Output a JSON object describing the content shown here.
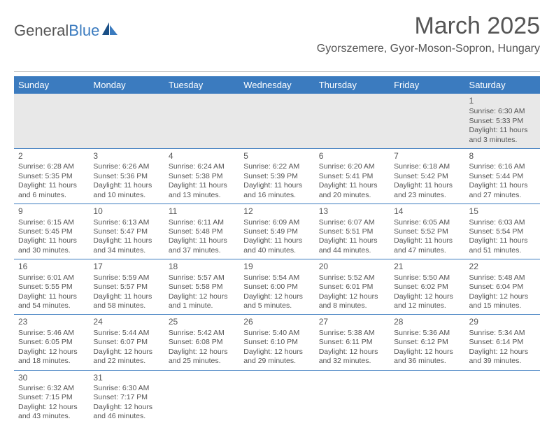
{
  "logo": {
    "text_a": "General",
    "text_b": "Blue",
    "mark_color": "#1a4f86",
    "accent_color": "#3b7bbf"
  },
  "header": {
    "title": "March 2025",
    "location": "Gyorszemere, Gyor-Moson-Sopron, Hungary"
  },
  "colors": {
    "header_bg": "#3b7bbf",
    "header_fg": "#ffffff",
    "row_border": "#3b7bbf",
    "empty_bg": "#e8e8e8",
    "text": "#555555"
  },
  "weekdays": [
    "Sunday",
    "Monday",
    "Tuesday",
    "Wednesday",
    "Thursday",
    "Friday",
    "Saturday"
  ],
  "weeks": [
    [
      null,
      null,
      null,
      null,
      null,
      null,
      {
        "n": "1",
        "sunrise": "Sunrise: 6:30 AM",
        "sunset": "Sunset: 5:33 PM",
        "daylight": "Daylight: 11 hours and 3 minutes."
      }
    ],
    [
      {
        "n": "2",
        "sunrise": "Sunrise: 6:28 AM",
        "sunset": "Sunset: 5:35 PM",
        "daylight": "Daylight: 11 hours and 6 minutes."
      },
      {
        "n": "3",
        "sunrise": "Sunrise: 6:26 AM",
        "sunset": "Sunset: 5:36 PM",
        "daylight": "Daylight: 11 hours and 10 minutes."
      },
      {
        "n": "4",
        "sunrise": "Sunrise: 6:24 AM",
        "sunset": "Sunset: 5:38 PM",
        "daylight": "Daylight: 11 hours and 13 minutes."
      },
      {
        "n": "5",
        "sunrise": "Sunrise: 6:22 AM",
        "sunset": "Sunset: 5:39 PM",
        "daylight": "Daylight: 11 hours and 16 minutes."
      },
      {
        "n": "6",
        "sunrise": "Sunrise: 6:20 AM",
        "sunset": "Sunset: 5:41 PM",
        "daylight": "Daylight: 11 hours and 20 minutes."
      },
      {
        "n": "7",
        "sunrise": "Sunrise: 6:18 AM",
        "sunset": "Sunset: 5:42 PM",
        "daylight": "Daylight: 11 hours and 23 minutes."
      },
      {
        "n": "8",
        "sunrise": "Sunrise: 6:16 AM",
        "sunset": "Sunset: 5:44 PM",
        "daylight": "Daylight: 11 hours and 27 minutes."
      }
    ],
    [
      {
        "n": "9",
        "sunrise": "Sunrise: 6:15 AM",
        "sunset": "Sunset: 5:45 PM",
        "daylight": "Daylight: 11 hours and 30 minutes."
      },
      {
        "n": "10",
        "sunrise": "Sunrise: 6:13 AM",
        "sunset": "Sunset: 5:47 PM",
        "daylight": "Daylight: 11 hours and 34 minutes."
      },
      {
        "n": "11",
        "sunrise": "Sunrise: 6:11 AM",
        "sunset": "Sunset: 5:48 PM",
        "daylight": "Daylight: 11 hours and 37 minutes."
      },
      {
        "n": "12",
        "sunrise": "Sunrise: 6:09 AM",
        "sunset": "Sunset: 5:49 PM",
        "daylight": "Daylight: 11 hours and 40 minutes."
      },
      {
        "n": "13",
        "sunrise": "Sunrise: 6:07 AM",
        "sunset": "Sunset: 5:51 PM",
        "daylight": "Daylight: 11 hours and 44 minutes."
      },
      {
        "n": "14",
        "sunrise": "Sunrise: 6:05 AM",
        "sunset": "Sunset: 5:52 PM",
        "daylight": "Daylight: 11 hours and 47 minutes."
      },
      {
        "n": "15",
        "sunrise": "Sunrise: 6:03 AM",
        "sunset": "Sunset: 5:54 PM",
        "daylight": "Daylight: 11 hours and 51 minutes."
      }
    ],
    [
      {
        "n": "16",
        "sunrise": "Sunrise: 6:01 AM",
        "sunset": "Sunset: 5:55 PM",
        "daylight": "Daylight: 11 hours and 54 minutes."
      },
      {
        "n": "17",
        "sunrise": "Sunrise: 5:59 AM",
        "sunset": "Sunset: 5:57 PM",
        "daylight": "Daylight: 11 hours and 58 minutes."
      },
      {
        "n": "18",
        "sunrise": "Sunrise: 5:57 AM",
        "sunset": "Sunset: 5:58 PM",
        "daylight": "Daylight: 12 hours and 1 minute."
      },
      {
        "n": "19",
        "sunrise": "Sunrise: 5:54 AM",
        "sunset": "Sunset: 6:00 PM",
        "daylight": "Daylight: 12 hours and 5 minutes."
      },
      {
        "n": "20",
        "sunrise": "Sunrise: 5:52 AM",
        "sunset": "Sunset: 6:01 PM",
        "daylight": "Daylight: 12 hours and 8 minutes."
      },
      {
        "n": "21",
        "sunrise": "Sunrise: 5:50 AM",
        "sunset": "Sunset: 6:02 PM",
        "daylight": "Daylight: 12 hours and 12 minutes."
      },
      {
        "n": "22",
        "sunrise": "Sunrise: 5:48 AM",
        "sunset": "Sunset: 6:04 PM",
        "daylight": "Daylight: 12 hours and 15 minutes."
      }
    ],
    [
      {
        "n": "23",
        "sunrise": "Sunrise: 5:46 AM",
        "sunset": "Sunset: 6:05 PM",
        "daylight": "Daylight: 12 hours and 18 minutes."
      },
      {
        "n": "24",
        "sunrise": "Sunrise: 5:44 AM",
        "sunset": "Sunset: 6:07 PM",
        "daylight": "Daylight: 12 hours and 22 minutes."
      },
      {
        "n": "25",
        "sunrise": "Sunrise: 5:42 AM",
        "sunset": "Sunset: 6:08 PM",
        "daylight": "Daylight: 12 hours and 25 minutes."
      },
      {
        "n": "26",
        "sunrise": "Sunrise: 5:40 AM",
        "sunset": "Sunset: 6:10 PM",
        "daylight": "Daylight: 12 hours and 29 minutes."
      },
      {
        "n": "27",
        "sunrise": "Sunrise: 5:38 AM",
        "sunset": "Sunset: 6:11 PM",
        "daylight": "Daylight: 12 hours and 32 minutes."
      },
      {
        "n": "28",
        "sunrise": "Sunrise: 5:36 AM",
        "sunset": "Sunset: 6:12 PM",
        "daylight": "Daylight: 12 hours and 36 minutes."
      },
      {
        "n": "29",
        "sunrise": "Sunrise: 5:34 AM",
        "sunset": "Sunset: 6:14 PM",
        "daylight": "Daylight: 12 hours and 39 minutes."
      }
    ],
    [
      {
        "n": "30",
        "sunrise": "Sunrise: 6:32 AM",
        "sunset": "Sunset: 7:15 PM",
        "daylight": "Daylight: 12 hours and 43 minutes."
      },
      {
        "n": "31",
        "sunrise": "Sunrise: 6:30 AM",
        "sunset": "Sunset: 7:17 PM",
        "daylight": "Daylight: 12 hours and 46 minutes."
      },
      null,
      null,
      null,
      null,
      null
    ]
  ]
}
